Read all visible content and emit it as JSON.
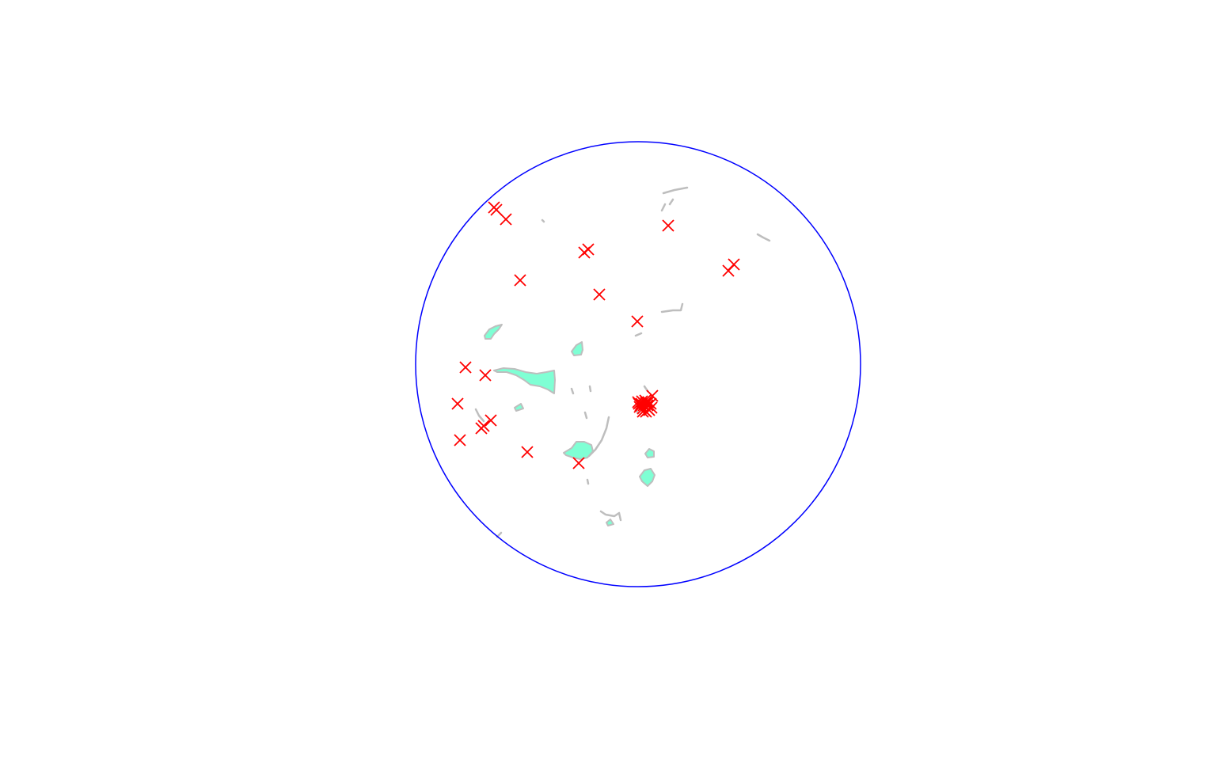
{
  "map": {
    "boundary": {
      "shape": "circle",
      "stroke_color": "#0000ff"
    },
    "land": {
      "fill_color": "#7fffd4",
      "outline_color": "#bebebe"
    },
    "markers": {
      "symbol": "x-cross",
      "color": "#ff0000",
      "count": 40
    }
  }
}
